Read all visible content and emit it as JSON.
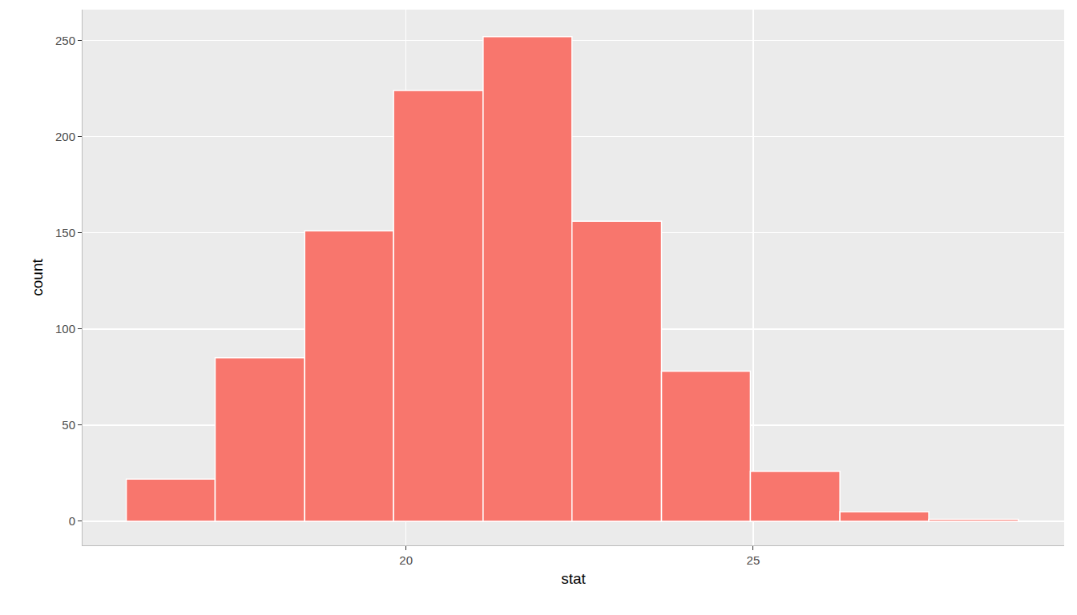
{
  "chart_data": {
    "type": "histogram",
    "x_label": "stat",
    "y_label": "count",
    "bins": [
      15.97,
      17.25,
      18.54,
      19.82,
      21.11,
      22.39,
      23.68,
      24.96,
      26.25,
      27.53,
      28.82
    ],
    "counts": [
      22,
      85,
      151,
      224,
      252,
      156,
      78,
      26,
      5,
      1
    ],
    "color": "#F8766D",
    "xlim": [
      15.34,
      29.48
    ],
    "xticks": [
      20,
      25
    ],
    "ylim": [
      -12.5,
      266
    ],
    "yticks": [
      0,
      50,
      100,
      150,
      200,
      250
    ],
    "grid": true
  }
}
